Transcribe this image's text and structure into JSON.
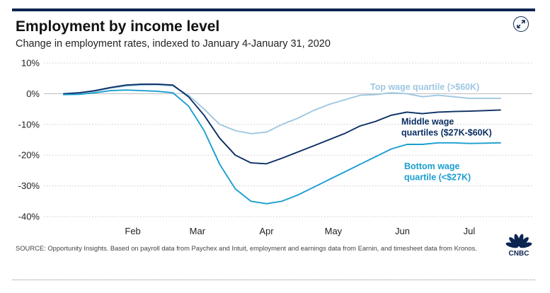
{
  "header": {
    "title": "Employment by income level",
    "subtitle": "Change in employment rates, indexed to January 4-January 31, 2020"
  },
  "icons": {
    "expand": "expand-arrows-icon",
    "logo": "cnbc-peacock-logo"
  },
  "colors": {
    "top": "#9ec7e1",
    "middle": "#0b2f63",
    "bottom": "#1b9ed0",
    "grid": "#c9c9c9",
    "accent": "#0b2551"
  },
  "footer": {
    "source": "SOURCE: Opportunity Insights. Based on payroll data from Paychex and Intuit, employment and earnings data from Earnin, and timesheet data from Kronos.",
    "logo_text": "CNBC"
  },
  "chart_data": {
    "type": "line",
    "title": "Employment by income level",
    "subtitle": "Change in employment rates, indexed to January 4-January 31, 2020",
    "xlabel": "",
    "ylabel": "",
    "x_tick_labels": [
      "Feb",
      "Mar",
      "Apr",
      "May",
      "Jun",
      "Jul"
    ],
    "y_tick_labels": [
      "10%",
      "0%",
      "-10%",
      "-20%",
      "-30%",
      "-40%"
    ],
    "ylim": [
      -40,
      10
    ],
    "grid": "horizontal",
    "legend": "inline labels at line ends",
    "x": [
      "Jan 15",
      "Jan 22",
      "Jan 29",
      "Feb 5",
      "Feb 12",
      "Feb 19",
      "Feb 26",
      "Mar 4",
      "Mar 11",
      "Mar 18",
      "Mar 25",
      "Apr 1",
      "Apr 8",
      "Apr 15",
      "Apr 22",
      "Apr 29",
      "May 6",
      "May 13",
      "May 20",
      "May 27",
      "Jun 3",
      "Jun 10",
      "Jun 17",
      "Jun 24",
      "Jul 1",
      "Jul 8",
      "Jul 15",
      "Jul 22",
      "Jul 29"
    ],
    "series": [
      {
        "name": "Top wage quartile (>$60K)",
        "values": [
          -0.3,
          0.2,
          0.8,
          1.8,
          2.5,
          2.8,
          2.9,
          2.5,
          -0.5,
          -5,
          -10,
          -12,
          -13,
          -12.5,
          -10,
          -8,
          -5.5,
          -3.5,
          -2,
          -0.5,
          -0.3,
          0.3,
          0,
          -1,
          -0.5,
          -1,
          -1.5,
          -1.5,
          -1.5
        ],
        "color": "#9ec7e1"
      },
      {
        "name": "Middle wage quartiles ($27K-$60K)",
        "values": [
          0,
          0.3,
          1,
          2,
          2.8,
          3.1,
          3.1,
          2.8,
          -1,
          -7,
          -14.5,
          -20,
          -22.5,
          -22.8,
          -21,
          -19,
          -17,
          -15,
          -13,
          -10.5,
          -9,
          -7,
          -6,
          -6.5,
          -6,
          -5.8,
          -5.7,
          -5.5,
          -5.3
        ],
        "color": "#0b2f63"
      },
      {
        "name": "Bottom wage quartile (<$27K)",
        "values": [
          -0.3,
          -0.2,
          0.3,
          1,
          1.2,
          1,
          0.8,
          0.3,
          -4,
          -12,
          -23,
          -31,
          -35,
          -35.8,
          -35,
          -33,
          -30.5,
          -28,
          -25.5,
          -23,
          -20.5,
          -18,
          -16.5,
          -16.5,
          -16,
          -16,
          -16.2,
          -16.1,
          -16
        ],
        "color": "#1b9ed0"
      }
    ]
  }
}
